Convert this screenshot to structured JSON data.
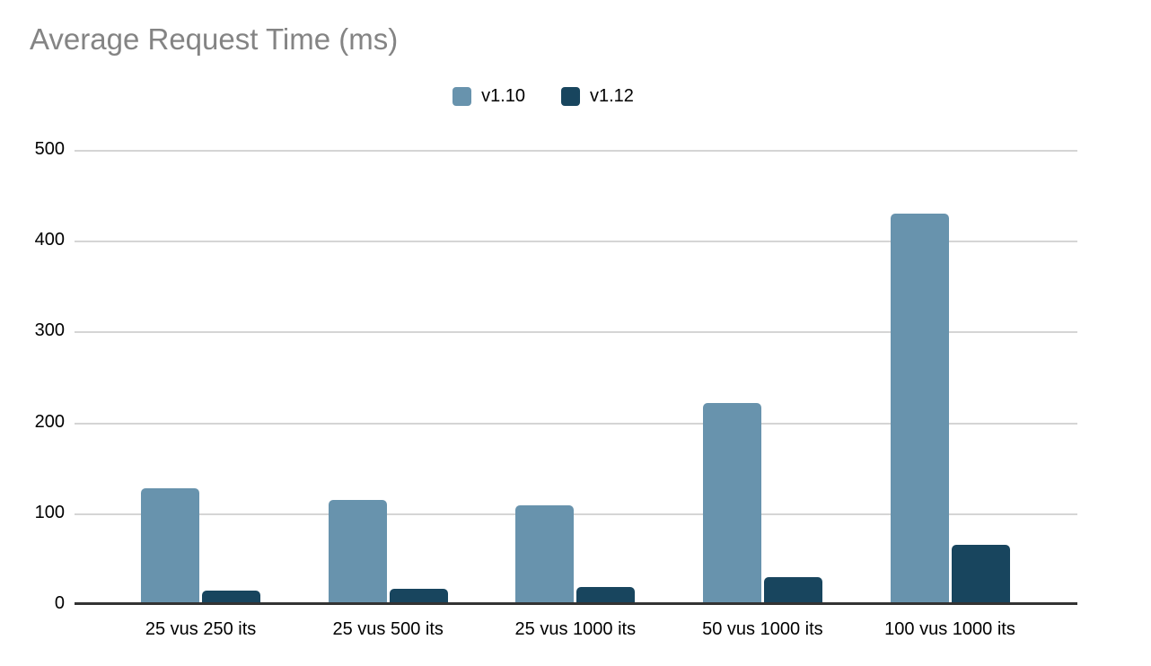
{
  "title": "Average Request Time (ms)",
  "colors": {
    "background": "#ffffff",
    "title_text": "#848484",
    "label_text": "#000000",
    "gridline": "#d5d5d5",
    "axis_line": "#333333",
    "series_v110": "#6893ad",
    "series_v112": "#18455e"
  },
  "legend": {
    "items": [
      {
        "label": "v1.10",
        "color": "#6893ad"
      },
      {
        "label": "v1.12",
        "color": "#18455e"
      }
    ]
  },
  "chart_data": {
    "type": "bar",
    "title": "Average Request Time (ms)",
    "xlabel": "",
    "ylabel": "",
    "categories": [
      "25 vus 250 its",
      "25 vus 500 its",
      "25 vus 1000 its",
      "50 vus 1000 its",
      "100 vus 1000 its"
    ],
    "series": [
      {
        "name": "v1.10",
        "color": "#6893ad",
        "values": [
          127,
          115,
          109,
          221,
          430
        ]
      },
      {
        "name": "v1.12",
        "color": "#18455e",
        "values": [
          15,
          17,
          19,
          30,
          65
        ]
      }
    ],
    "ylim": [
      0,
      500
    ],
    "yticks": [
      0,
      100,
      200,
      300,
      400,
      500
    ],
    "grid": true,
    "legend_position": "top-center"
  }
}
